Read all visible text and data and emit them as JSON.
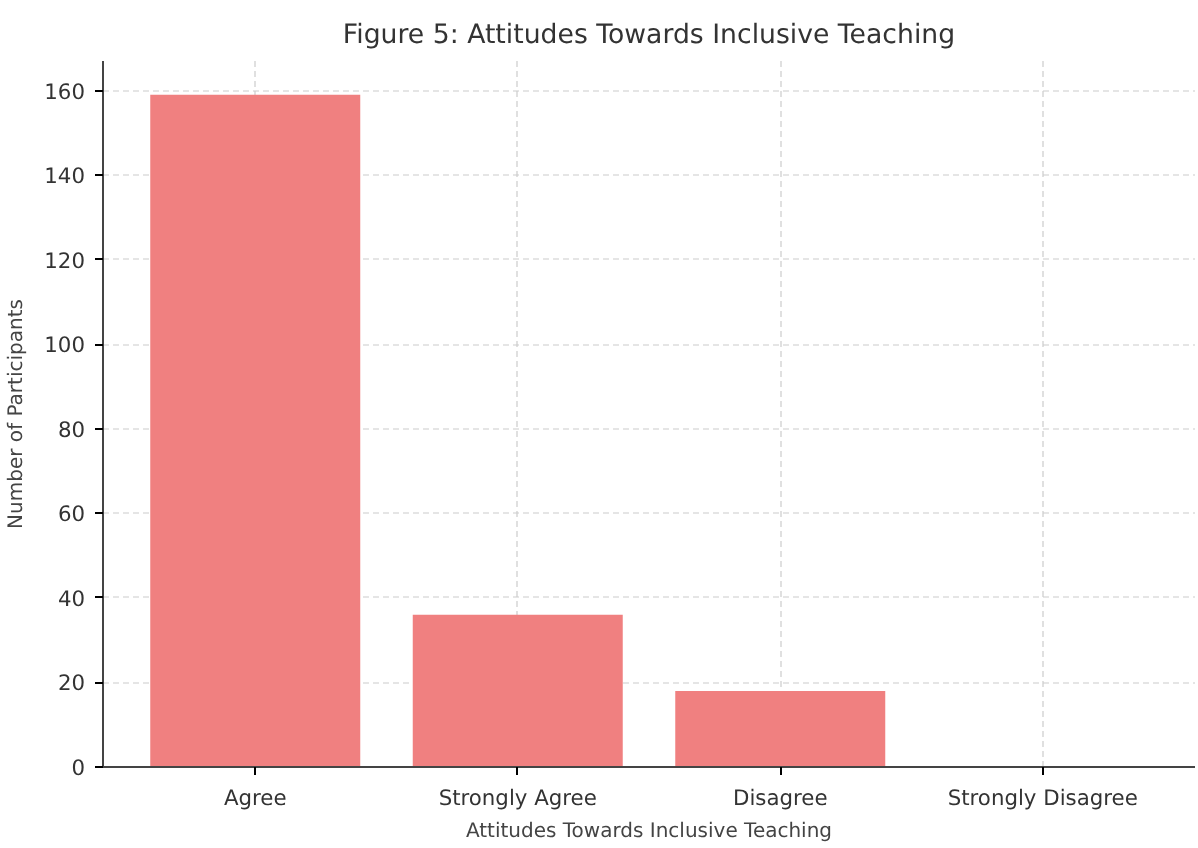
{
  "chart_data": {
    "type": "bar",
    "title": "Figure 5: Attitudes Towards Inclusive Teaching",
    "xlabel": "Attitudes Towards Inclusive Teaching",
    "ylabel": "Number of Participants",
    "categories": [
      "Agree",
      "Strongly Agree",
      "Disagree",
      "Strongly Disagree"
    ],
    "values": [
      159,
      36,
      18,
      0
    ],
    "color": "#f08080",
    "ylim": [
      0,
      167
    ],
    "yticks": [
      0,
      20,
      40,
      60,
      80,
      100,
      120,
      140,
      160
    ],
    "grid": true
  }
}
